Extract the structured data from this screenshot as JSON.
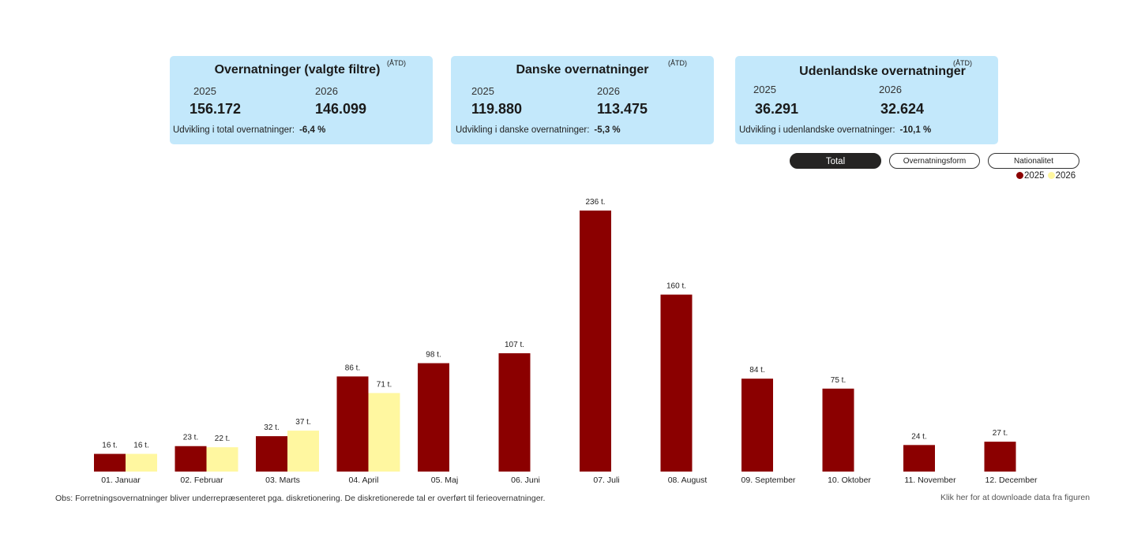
{
  "kpis": [
    {
      "title": "Overnatninger (valgte filtre)",
      "atd": "(ÅTD)",
      "year1": "2025",
      "year2": "2026",
      "value1": "156.172",
      "value2": "146.099",
      "dev_label": "Udvikling i total overnatninger:",
      "dev_value": "-6,4 %"
    },
    {
      "title": "Danske overnatninger",
      "atd": "(ÅTD)",
      "year1": "2025",
      "year2": "2026",
      "value1": "119.880",
      "value2": "113.475",
      "dev_label": "Udvikling i danske overnatninger:",
      "dev_value": "-5,3 %"
    },
    {
      "title": "Udenlandske overnatninger",
      "atd": "(ÅTD)",
      "year1": "2025",
      "year2": "2026",
      "value1": "36.291",
      "value2": "32.624",
      "dev_label": "Udvikling i udenlandske overnatninger:",
      "dev_value": "-10,1 %"
    }
  ],
  "toggles": {
    "total": "Total",
    "form": "Overnatningsform",
    "nationality": "Nationalitet",
    "active": "Total"
  },
  "legend": {
    "item1": "2025",
    "item2": "2026"
  },
  "colors": {
    "series2025": "#8b0000",
    "series2026": "#fff7a0",
    "kpi_bg": "#c3e8fb"
  },
  "footer": {
    "note": "Obs: Forretningsovernatninger bliver underrepræsenteret pga. diskretionering. De diskretionerede tal er overført til ferieovernatninger.",
    "download": "Klik her for at downloade data fra figuren"
  },
  "chart_data": {
    "type": "bar",
    "title": "",
    "xlabel": "",
    "ylabel": "",
    "ylim": [
      0,
      236
    ],
    "grid": false,
    "legend_position": "top-right",
    "categories": [
      "01. Januar",
      "02. Februar",
      "03. Marts",
      "04. April",
      "05. Maj",
      "06. Juni",
      "07. Juli",
      "08. August",
      "09. September",
      "10. Oktober",
      "11. November",
      "12. December"
    ],
    "series": [
      {
        "name": "2025",
        "color": "#8b0000",
        "values": [
          16,
          23,
          32,
          86,
          98,
          107,
          236,
          160,
          84,
          75,
          24,
          27
        ],
        "labels": [
          "16 t.",
          "23 t.",
          "32 t.",
          "86 t.",
          "98 t.",
          "107 t.",
          "236 t.",
          "160 t.",
          "84 t.",
          "75 t.",
          "24 t.",
          "27 t."
        ]
      },
      {
        "name": "2026",
        "color": "#fff7a0",
        "values": [
          16,
          22,
          37,
          71,
          null,
          null,
          null,
          null,
          null,
          null,
          null,
          null
        ],
        "labels": [
          "16 t.",
          "22 t.",
          "37 t.",
          "71 t.",
          null,
          null,
          null,
          null,
          null,
          null,
          null,
          null
        ]
      }
    ]
  }
}
